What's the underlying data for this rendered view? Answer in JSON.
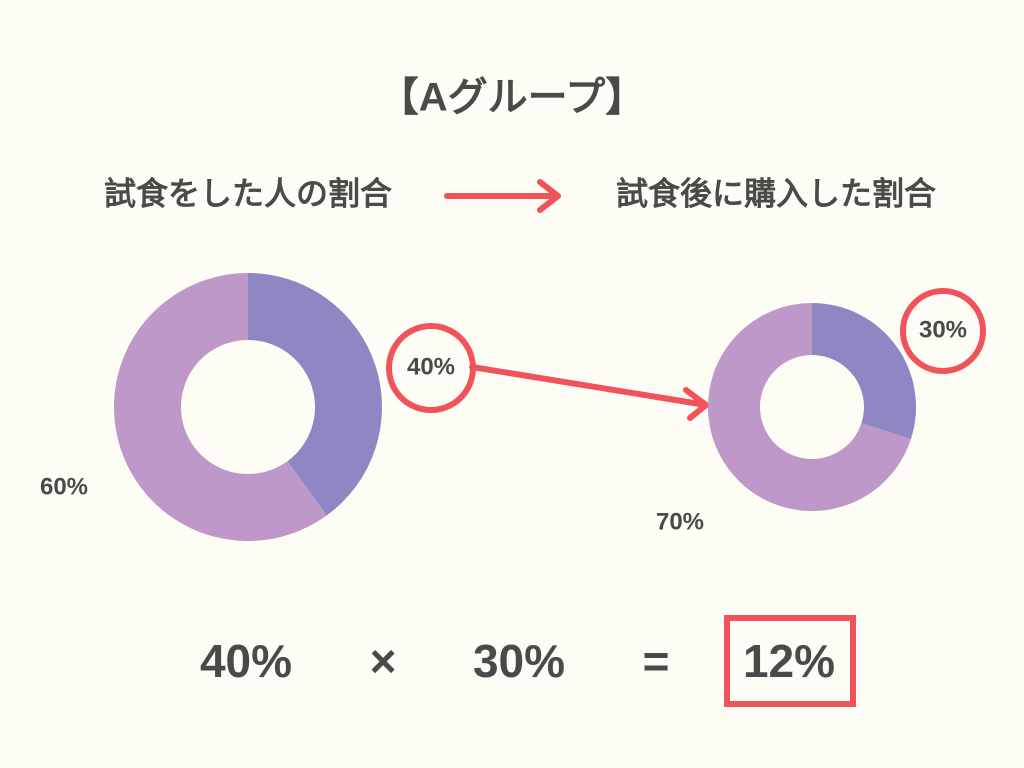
{
  "header": {
    "title": "【Aグループ】",
    "from": "試食をした人の割合",
    "to": "試食後に購入した割合"
  },
  "chart_data": [
    {
      "type": "pie",
      "donut": true,
      "values": [
        40,
        60
      ],
      "value_labels": [
        "40%",
        "60%"
      ],
      "colors": [
        "#8f86c4",
        "#bd98c8"
      ]
    },
    {
      "type": "pie",
      "donut": true,
      "values": [
        30,
        70
      ],
      "value_labels": [
        "30%",
        "70%"
      ],
      "colors": [
        "#8f86c4",
        "#bd98c8"
      ]
    }
  ],
  "equation": [
    "40%",
    "×",
    "30%",
    "=",
    "12%"
  ]
}
